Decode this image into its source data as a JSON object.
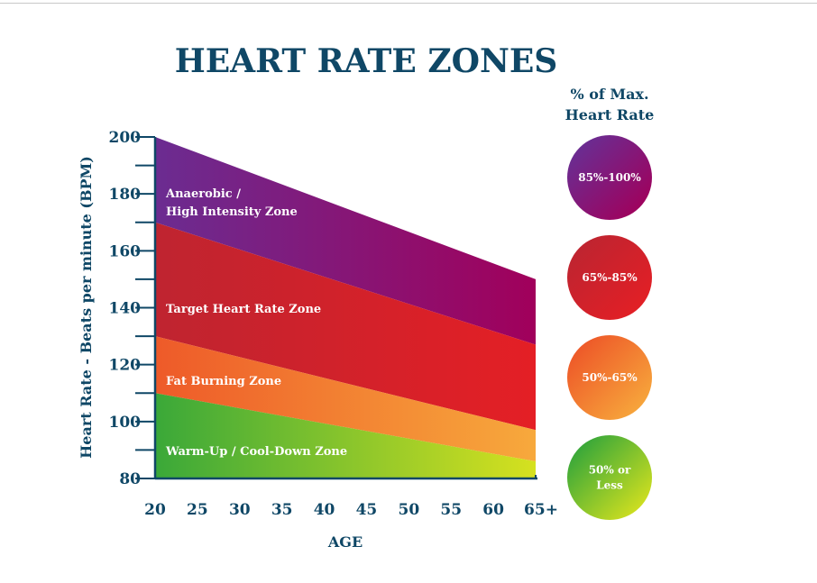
{
  "chart_data": {
    "type": "area",
    "title": "HEART RATE ZONES",
    "xlabel": "AGE",
    "ylabel": "Heart Rate - Beats per minute (BPM)",
    "x_ticks": [
      "20",
      "25",
      "30",
      "35",
      "40",
      "45",
      "50",
      "55",
      "60",
      "65+"
    ],
    "y_ticks": [
      80,
      100,
      120,
      140,
      160,
      180,
      200
    ],
    "ylim": [
      80,
      200
    ],
    "x": [
      20,
      65
    ],
    "grid": false,
    "legend_title": "% of Max. Heart Rate",
    "legend_title_lines": [
      "% of Max.",
      "Heart Rate"
    ],
    "legend_placement": "right",
    "zones": [
      {
        "name": "Anaerobic / High Intensity Zone",
        "label_lines": [
          "Anaerobic /",
          "High Intensity Zone"
        ],
        "upper": [
          200,
          150
        ],
        "lower": [
          170,
          127
        ],
        "legend": [
          "85%-100%"
        ],
        "colors": [
          "#6b2c91",
          "#a1005b"
        ]
      },
      {
        "name": "Target Heart Rate Zone",
        "label_lines": [
          "Target Heart Rate Zone"
        ],
        "upper": [
          170,
          127
        ],
        "lower": [
          130,
          97
        ],
        "legend": [
          "65%-85%"
        ],
        "colors": [
          "#bf2430",
          "#e41f25"
        ]
      },
      {
        "name": "Fat Burning Zone",
        "label_lines": [
          "Fat Burning Zone"
        ],
        "upper": [
          130,
          97
        ],
        "lower": [
          110,
          86
        ],
        "legend": [
          "50%-65%"
        ],
        "colors": [
          "#ee5a29",
          "#f7a93c"
        ]
      },
      {
        "name": "Warm-Up / Cool-Down Zone",
        "label_lines": [
          "Warm-Up / Cool-Down Zone"
        ],
        "upper": [
          110,
          86
        ],
        "lower": [
          80,
          80
        ],
        "legend": [
          "50% or",
          "Less"
        ],
        "colors": [
          "#3aa839",
          "#d6e11f"
        ]
      }
    ],
    "text_color": "#0f4766"
  }
}
